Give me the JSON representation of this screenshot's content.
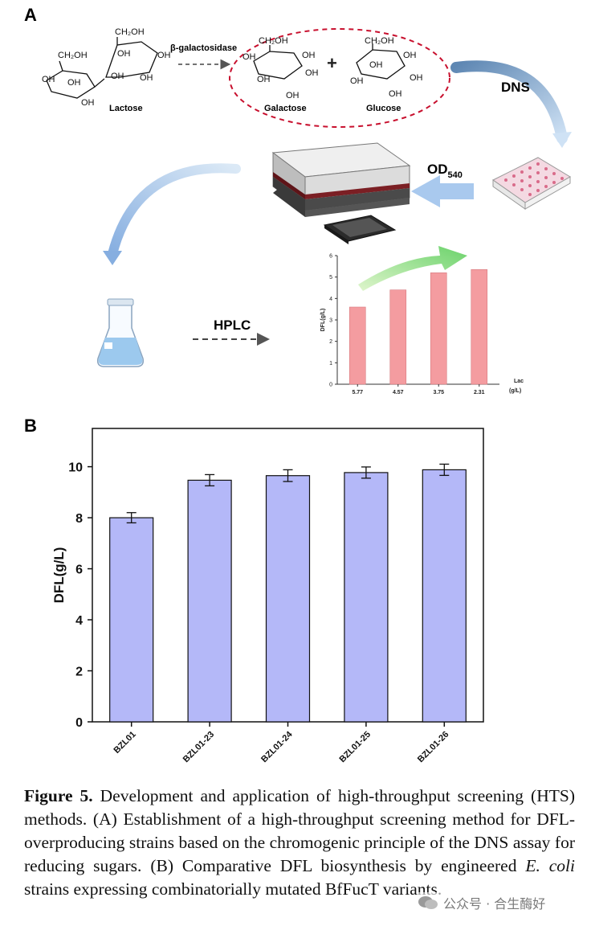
{
  "panel_a": {
    "letter": "A",
    "enzyme": "β-galactosidase",
    "sugars": {
      "lactose": "Lactose",
      "galactose": "Galactose",
      "glucose": "Glucose"
    },
    "groups": {
      "ch2oh": "CH₂OH",
      "oh": "OH"
    },
    "dns_label": "DNS",
    "od_label": "OD",
    "od_sub": "540",
    "hplc_label": "HPLC"
  },
  "panel_b_letter": "B",
  "chart_data": [
    {
      "type": "bar",
      "panel": "A-inset",
      "title": "",
      "ylabel": "DFL(g/L)",
      "xlabel": "Lac (g/L)",
      "xlabel_lines": [
        "Lac",
        "(g/L)"
      ],
      "categories": [
        "5.77",
        "4.57",
        "3.75",
        "2.31"
      ],
      "values": [
        3.6,
        4.4,
        5.2,
        5.35
      ],
      "ylim": [
        0,
        6
      ],
      "yticks": [
        "0",
        "1",
        "2",
        "3",
        "4",
        "5",
        "6"
      ],
      "color": "#f49ca0"
    },
    {
      "type": "bar",
      "panel": "B",
      "title": "",
      "ylabel": "DFL(g/L)",
      "xlabel": "",
      "categories": [
        "BZL01",
        "BZL01-23",
        "BZL01-24",
        "BZL01-25",
        "BZL01-26"
      ],
      "values": [
        8.0,
        9.47,
        9.65,
        9.77,
        9.88
      ],
      "errors": [
        0.2,
        0.22,
        0.23,
        0.22,
        0.22
      ],
      "ylim": [
        0,
        11.5
      ],
      "yticks": [
        "0",
        "2",
        "4",
        "6",
        "8",
        "10"
      ],
      "color": "#b4b8f8"
    }
  ],
  "caption": {
    "label": "Figure 5.",
    "text1": " Development and application of high-throughput screening (HTS) methods. (A) Establishment of a high-throughput screening method for DFL-overproducing strains based on the chromogenic principle of the DNS assay for reducing sugars. (B) Comparative DFL biosynthesis by engineered ",
    "italic": "E. coli",
    "text2": " strains expressing combinatorially mutated BfFucT variants."
  },
  "watermark": "公众号 · 合生酶好"
}
